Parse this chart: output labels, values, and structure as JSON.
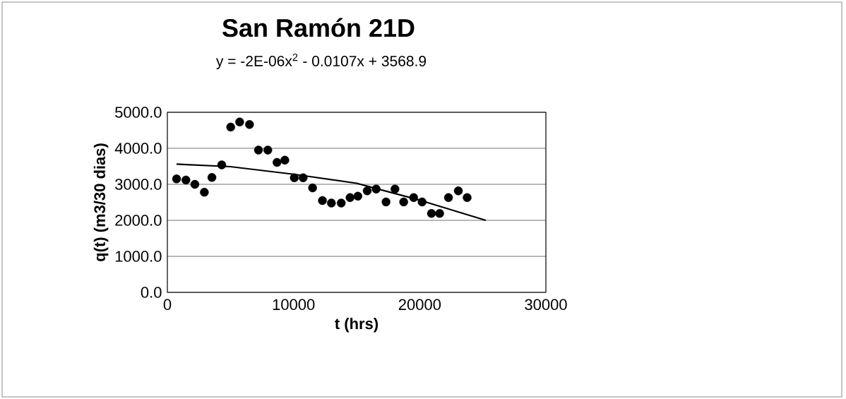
{
  "chart_data": {
    "type": "scatter",
    "title": "San Ramón 21D",
    "subtitle": "y = -2E-06x$^{2}$ - 0.0107x + 3568.9",
    "xlabel": "t (hrs)",
    "ylabel": "q(t) (m3/30 dias)",
    "xlim": [
      0,
      30000
    ],
    "ylim": [
      0,
      5000
    ],
    "xticks": [
      0,
      10000,
      20000,
      30000
    ],
    "yticks": [
      {
        "value": 0,
        "label": "0.0"
      },
      {
        "value": 1000,
        "label": "1000.0"
      },
      {
        "value": 2000,
        "label": "2000.0"
      },
      {
        "value": 3000,
        "label": "3000.0"
      },
      {
        "value": 4000,
        "label": "4000.0"
      },
      {
        "value": 5000,
        "label": "5000.0"
      }
    ],
    "grid": "y",
    "series": [
      {
        "marker": "circle",
        "color": "#000000",
        "x": [
          730,
          1470,
          2180,
          2930,
          3530,
          4310,
          5020,
          5730,
          6510,
          7220,
          7960,
          8690,
          9310,
          10060,
          10760,
          11510,
          12290,
          13000,
          13780,
          14480,
          15100,
          15840,
          16550,
          17330,
          18040,
          18730,
          19520,
          20190,
          20930,
          21580,
          22280,
          23060,
          23760
        ],
        "values": [
          3150,
          3120,
          3000,
          2780,
          3190,
          3540,
          4590,
          4730,
          4660,
          3950,
          3950,
          3610,
          3670,
          3180,
          3180,
          2900,
          2550,
          2480,
          2480,
          2630,
          2670,
          2820,
          2870,
          2510,
          2870,
          2510,
          2630,
          2510,
          2190,
          2190,
          2630,
          2820,
          2630
        ]
      },
      {
        "type": "line",
        "marker": "none",
        "line_style": "solid",
        "color": "#000000",
        "x": [
          730,
          5000,
          10000,
          15000,
          20000,
          25240
        ],
        "values": [
          3560,
          3490,
          3280,
          3030,
          2560,
          2000
        ]
      }
    ]
  }
}
